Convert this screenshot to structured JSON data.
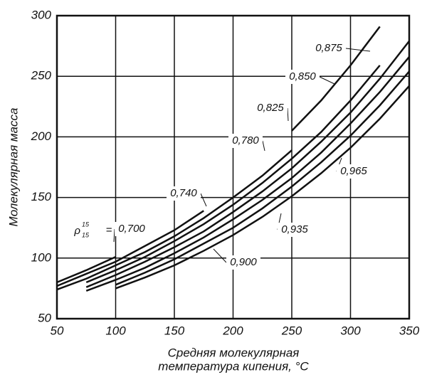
{
  "chart_data": {
    "type": "line",
    "ylabel": "Молекулярная масса",
    "xlabel": [
      "Средняя молекулярная",
      "температура кипения, °C"
    ],
    "label_prefix": {
      "symbol": "ρ",
      "sup": "15",
      "sub": "15",
      "eq": "="
    },
    "x": [
      50,
      75,
      100,
      125,
      150,
      175,
      200,
      225,
      250,
      275,
      300,
      325,
      350
    ],
    "series": [
      {
        "name": "0,700",
        "color": "#111",
        "values": [
          80,
          90,
          101,
          null,
          null,
          null,
          null,
          null,
          null,
          null,
          null,
          null,
          null
        ]
      },
      {
        "name": "0,740",
        "color": "#111",
        "values": [
          77,
          87,
          97,
          110,
          123,
          139,
          null,
          null,
          null,
          null,
          null,
          null,
          null
        ]
      },
      {
        "name": "0,780",
        "color": "#111",
        "values": [
          74,
          83,
          94,
          105,
          118,
          133,
          150,
          168,
          189,
          null,
          null,
          null,
          null
        ]
      },
      {
        "name": "0,825",
        "color": "#111",
        "values": [
          null,
          80,
          90,
          101,
          114,
          128,
          144,
          162,
          182,
          204,
          230,
          259,
          null
        ]
      },
      {
        "name": "0,850",
        "color": "#111",
        "values": [
          null,
          76,
          86,
          97,
          109,
          122,
          138,
          155,
          174,
          196,
          220,
          248,
          279
        ]
      },
      {
        "name": "0,875",
        "color": "#111",
        "values": [
          null,
          null,
          null,
          null,
          null,
          null,
          null,
          null,
          205,
          230,
          259,
          291,
          null
        ]
      },
      {
        "name": "0,900",
        "color": "#111",
        "values": [
          null,
          73,
          82,
          92,
          104,
          117,
          132,
          148,
          166,
          187,
          211,
          237,
          266
        ]
      },
      {
        "name": "0,935",
        "color": "#111",
        "values": [
          null,
          null,
          78,
          88,
          99,
          112,
          125,
          141,
          159,
          179,
          201,
          226,
          254
        ]
      },
      {
        "name": "0,965",
        "color": "#111",
        "values": [
          null,
          null,
          75,
          84,
          94,
          106,
          119,
          134,
          151,
          170,
          191,
          215,
          242
        ]
      }
    ],
    "xlim": [
      50,
      350
    ],
    "xticks": [
      50,
      100,
      150,
      200,
      250,
      300,
      350
    ],
    "ylim": [
      50,
      300
    ],
    "yticks": [
      50,
      100,
      150,
      200,
      250,
      300
    ],
    "grid": true
  }
}
